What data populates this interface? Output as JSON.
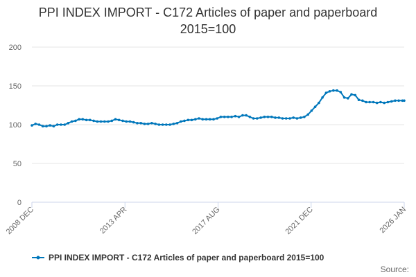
{
  "chart_data": {
    "type": "line",
    "title_line1": "PPI INDEX IMPORT - C172 Articles of paper and paperboard",
    "title_line2": "2015=100",
    "xlabel": "",
    "ylabel": "",
    "ylim": [
      0,
      200
    ],
    "yticks": [
      0,
      50,
      100,
      150,
      200
    ],
    "x_tick_labels": [
      "2008 DEC",
      "2013 APR",
      "2017 AUG",
      "2021 DEC",
      "2026 JAN"
    ],
    "x_range": [
      "2008-12",
      "2026-01"
    ],
    "grid": true,
    "legend_position": "bottom",
    "series_color": "#0077bb",
    "series": [
      {
        "name": "PPI INDEX IMPORT - C172 Articles of paper and paperboard 2015=100",
        "points": [
          [
            "2008-12",
            99
          ],
          [
            "2009-02",
            101
          ],
          [
            "2009-04",
            100
          ],
          [
            "2009-06",
            98
          ],
          [
            "2009-08",
            98
          ],
          [
            "2009-10",
            99
          ],
          [
            "2009-12",
            98
          ],
          [
            "2010-02",
            100
          ],
          [
            "2010-04",
            100
          ],
          [
            "2010-06",
            100
          ],
          [
            "2010-08",
            102
          ],
          [
            "2010-10",
            104
          ],
          [
            "2010-12",
            105
          ],
          [
            "2011-02",
            107
          ],
          [
            "2011-04",
            107
          ],
          [
            "2011-06",
            106
          ],
          [
            "2011-08",
            106
          ],
          [
            "2011-10",
            105
          ],
          [
            "2011-12",
            104
          ],
          [
            "2012-02",
            104
          ],
          [
            "2012-04",
            104
          ],
          [
            "2012-06",
            104
          ],
          [
            "2012-08",
            105
          ],
          [
            "2012-10",
            107
          ],
          [
            "2012-12",
            106
          ],
          [
            "2013-02",
            105
          ],
          [
            "2013-04",
            104
          ],
          [
            "2013-06",
            104
          ],
          [
            "2013-08",
            103
          ],
          [
            "2013-10",
            102
          ],
          [
            "2013-12",
            102
          ],
          [
            "2014-02",
            101
          ],
          [
            "2014-04",
            101
          ],
          [
            "2014-06",
            102
          ],
          [
            "2014-08",
            101
          ],
          [
            "2014-10",
            100
          ],
          [
            "2014-12",
            100
          ],
          [
            "2015-02",
            100
          ],
          [
            "2015-04",
            100
          ],
          [
            "2015-06",
            101
          ],
          [
            "2015-08",
            102
          ],
          [
            "2015-10",
            104
          ],
          [
            "2015-12",
            105
          ],
          [
            "2016-02",
            106
          ],
          [
            "2016-04",
            106
          ],
          [
            "2016-06",
            107
          ],
          [
            "2016-08",
            108
          ],
          [
            "2016-10",
            107
          ],
          [
            "2016-12",
            107
          ],
          [
            "2017-02",
            107
          ],
          [
            "2017-04",
            107
          ],
          [
            "2017-06",
            108
          ],
          [
            "2017-08",
            110
          ],
          [
            "2017-10",
            110
          ],
          [
            "2017-12",
            110
          ],
          [
            "2018-02",
            110
          ],
          [
            "2018-04",
            111
          ],
          [
            "2018-06",
            110
          ],
          [
            "2018-08",
            112
          ],
          [
            "2018-10",
            112
          ],
          [
            "2018-12",
            110
          ],
          [
            "2019-02",
            108
          ],
          [
            "2019-04",
            108
          ],
          [
            "2019-06",
            109
          ],
          [
            "2019-08",
            110
          ],
          [
            "2019-10",
            110
          ],
          [
            "2019-12",
            110
          ],
          [
            "2020-02",
            109
          ],
          [
            "2020-04",
            109
          ],
          [
            "2020-06",
            108
          ],
          [
            "2020-08",
            108
          ],
          [
            "2020-10",
            108
          ],
          [
            "2020-12",
            109
          ],
          [
            "2021-02",
            108
          ],
          [
            "2021-04",
            109
          ],
          [
            "2021-06",
            110
          ],
          [
            "2021-08",
            113
          ],
          [
            "2021-10",
            118
          ],
          [
            "2021-12",
            123
          ],
          [
            "2022-02",
            128
          ],
          [
            "2022-04",
            135
          ],
          [
            "2022-06",
            141
          ],
          [
            "2022-08",
            143
          ],
          [
            "2022-10",
            144
          ],
          [
            "2022-12",
            144
          ],
          [
            "2023-02",
            142
          ],
          [
            "2023-04",
            135
          ],
          [
            "2023-06",
            134
          ],
          [
            "2023-08",
            139
          ],
          [
            "2023-10",
            138
          ],
          [
            "2023-12",
            132
          ],
          [
            "2024-02",
            131
          ],
          [
            "2024-04",
            129
          ],
          [
            "2024-06",
            129
          ],
          [
            "2024-08",
            129
          ],
          [
            "2024-10",
            128
          ],
          [
            "2024-12",
            129
          ],
          [
            "2025-02",
            128
          ],
          [
            "2025-04",
            129
          ],
          [
            "2025-06",
            130
          ],
          [
            "2025-08",
            131
          ],
          [
            "2025-10",
            131
          ],
          [
            "2025-12",
            131
          ],
          [
            "2026-01",
            131
          ]
        ]
      }
    ],
    "source_label": "Source:"
  }
}
